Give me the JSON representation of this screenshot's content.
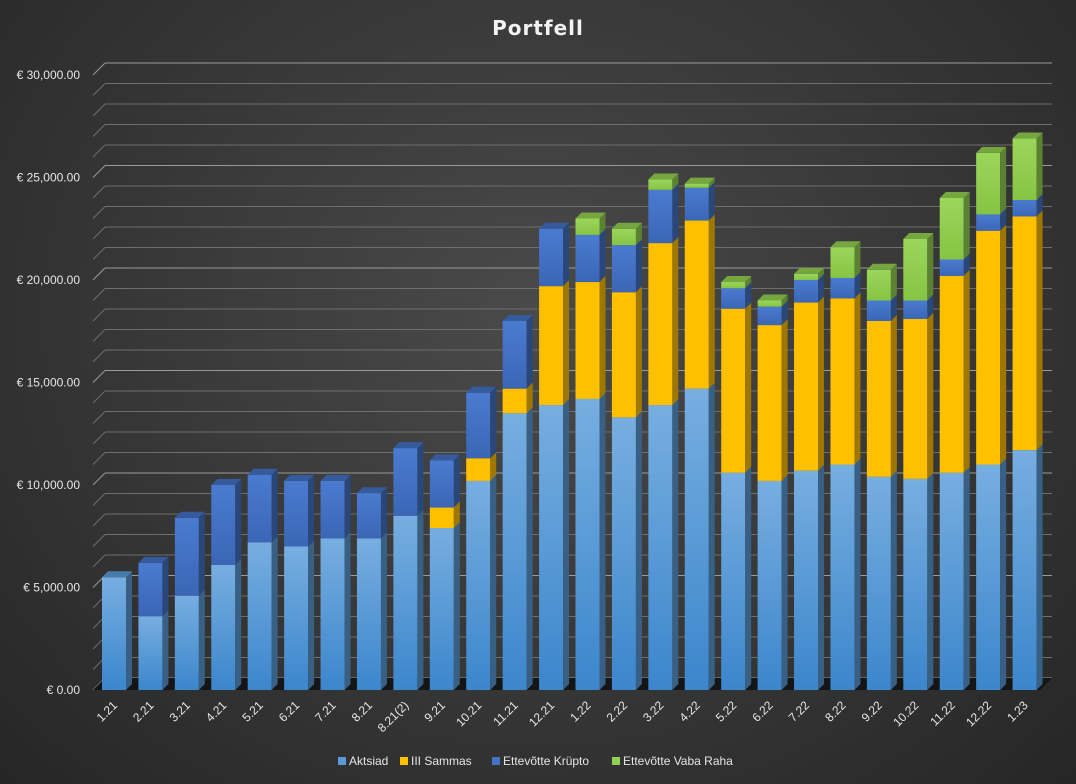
{
  "chart_data": {
    "type": "bar",
    "stacked": true,
    "three_d": true,
    "title": "Portfell",
    "xlabel": "",
    "ylabel": "",
    "ylim": [
      0,
      30000
    ],
    "yticks": [
      0,
      5000,
      10000,
      15000,
      20000,
      25000,
      30000
    ],
    "ytick_labels": [
      "€ 0.00",
      "€ 5,000.00",
      "€ 10,000.00",
      "€ 15,000.00",
      "€ 20,000.00",
      "€ 25,000.00",
      "€ 30,000.00"
    ],
    "gridlines": true,
    "legend_position": "bottom",
    "categories": [
      "1.21",
      "2.21",
      "3.21",
      "4.21",
      "5.21",
      "6.21",
      "7.21",
      "8.21",
      "8.21(2)",
      "9.21",
      "10.21",
      "11.21",
      "12.21",
      "1.22",
      "2.22",
      "3.22",
      "4.22",
      "5.22",
      "6.22",
      "7.22",
      "8.22",
      "9.22",
      "10.22",
      "11.22",
      "12.22",
      "1.23"
    ],
    "series": [
      {
        "name": "Aktsiad",
        "color": "#5b9bd5",
        "values": [
          5500,
          3600,
          4600,
          6100,
          7200,
          7000,
          7400,
          7400,
          8500,
          7900,
          10200,
          13500,
          13900,
          14200,
          13300,
          13900,
          14700,
          10600,
          10200,
          10700,
          11000,
          10400,
          10300,
          10600,
          11000,
          11700
        ]
      },
      {
        "name": "III Sammas",
        "color": "#ffc000",
        "values": [
          0,
          0,
          0,
          0,
          0,
          0,
          0,
          0,
          0,
          1000,
          1100,
          1200,
          5800,
          5700,
          6100,
          7900,
          8200,
          8000,
          7600,
          8200,
          8100,
          7600,
          7800,
          9600,
          11400,
          11400
        ]
      },
      {
        "name": "Ettevõtte Krüpto",
        "color": "#4472c4",
        "values": [
          0,
          2600,
          3800,
          3900,
          3300,
          3200,
          2800,
          2200,
          3300,
          2300,
          3200,
          3300,
          2800,
          2300,
          2300,
          2600,
          1600,
          1000,
          900,
          1100,
          1000,
          1000,
          900,
          800,
          800,
          800
        ]
      },
      {
        "name": "Ettevõtte Vaba Raha",
        "color": "#92d050",
        "values": [
          0,
          0,
          0,
          0,
          0,
          0,
          0,
          0,
          0,
          0,
          0,
          0,
          0,
          800,
          800,
          500,
          200,
          300,
          300,
          300,
          1500,
          1500,
          3000,
          3000,
          3000,
          3000
        ]
      }
    ]
  }
}
